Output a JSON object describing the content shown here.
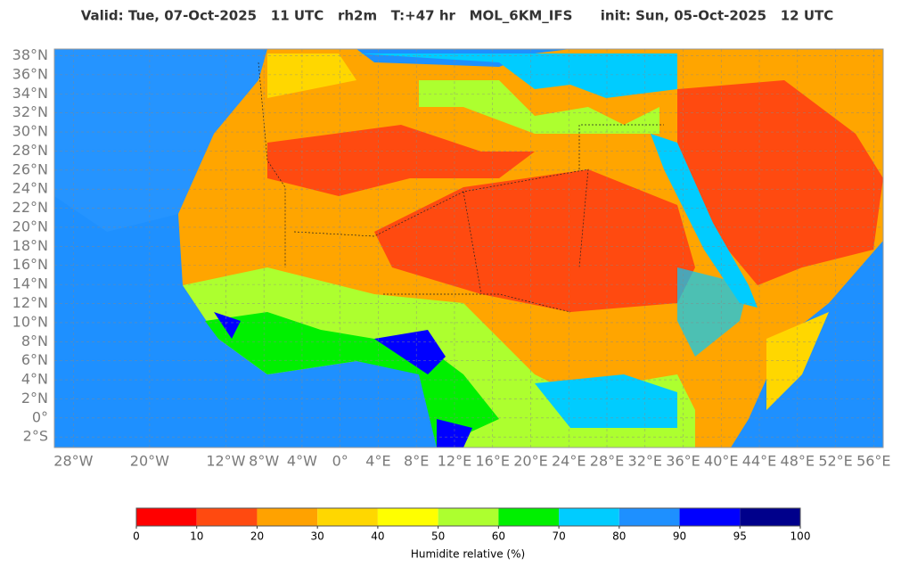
{
  "title": "Valid: Tue, 07-Oct-2025   11 UTC   rh2m   T:+47 hr   MOL_6KM_IFS      init: Sun, 05-Oct-2025   12 UTC",
  "map": {
    "xlim": [
      -30,
      57
    ],
    "ylim": [
      -3.1,
      38.7
    ],
    "xticks": [
      {
        "value": -28,
        "label": "28°W"
      },
      {
        "value": -20,
        "label": "20°W"
      },
      {
        "value": -12,
        "label": "12°W"
      },
      {
        "value": -8,
        "label": "8°W"
      },
      {
        "value": -4,
        "label": "4°W"
      },
      {
        "value": 0,
        "label": "0°"
      },
      {
        "value": 4,
        "label": "4°E"
      },
      {
        "value": 8,
        "label": "8°E"
      },
      {
        "value": 12,
        "label": "12°E"
      },
      {
        "value": 16,
        "label": "16°E"
      },
      {
        "value": 20,
        "label": "20°E"
      },
      {
        "value": 24,
        "label": "24°E"
      },
      {
        "value": 28,
        "label": "28°E"
      },
      {
        "value": 32,
        "label": "32°E"
      },
      {
        "value": 36,
        "label": "36°E"
      },
      {
        "value": 40,
        "label": "40°E"
      },
      {
        "value": 44,
        "label": "44°E"
      },
      {
        "value": 48,
        "label": "48°E"
      },
      {
        "value": 52,
        "label": "52°E"
      },
      {
        "value": 56,
        "label": "56°E"
      }
    ],
    "yticks": [
      {
        "value": 38,
        "label": "38°N"
      },
      {
        "value": 36,
        "label": "36°N"
      },
      {
        "value": 34,
        "label": "34°N"
      },
      {
        "value": 32,
        "label": "32°N"
      },
      {
        "value": 30,
        "label": "30°N"
      },
      {
        "value": 28,
        "label": "28°N"
      },
      {
        "value": 26,
        "label": "26°N"
      },
      {
        "value": 24,
        "label": "24°N"
      },
      {
        "value": 22,
        "label": "22°N"
      },
      {
        "value": 20,
        "label": "20°N"
      },
      {
        "value": 18,
        "label": "18°N"
      },
      {
        "value": 16,
        "label": "16°N"
      },
      {
        "value": 14,
        "label": "14°N"
      },
      {
        "value": 12,
        "label": "12°N"
      },
      {
        "value": 10,
        "label": "10°N"
      },
      {
        "value": 8,
        "label": "8°N"
      },
      {
        "value": 6,
        "label": "6°N"
      },
      {
        "value": 4,
        "label": "4°N"
      },
      {
        "value": 2,
        "label": "2°N"
      },
      {
        "value": 0,
        "label": "0°"
      },
      {
        "value": -2,
        "label": "2°S"
      }
    ],
    "grid": true
  },
  "colorbar": {
    "ticks": [
      0,
      10,
      20,
      30,
      40,
      50,
      60,
      70,
      80,
      90,
      95,
      100
    ],
    "colors": [
      "#ff0000",
      "#ff4a10",
      "#ffa200",
      "#ffd700",
      "#ffff00",
      "#adff2f",
      "#00f000",
      "#00ccff",
      "#1e90ff",
      "#0000ff",
      "#00008b"
    ],
    "label": "Humidite relative (%)"
  }
}
